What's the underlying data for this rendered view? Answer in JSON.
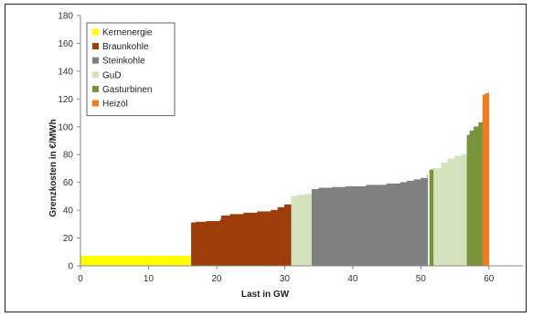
{
  "chart_data": {
    "type": "area",
    "xlabel": "Last in GW",
    "ylabel": "Grenzkosten in €/MWh",
    "xlim": [
      0,
      65
    ],
    "ylim": [
      0,
      180
    ],
    "xticks": [
      0,
      10,
      20,
      30,
      40,
      50,
      60
    ],
    "yticks": [
      0,
      20,
      40,
      60,
      80,
      100,
      120,
      140,
      160,
      180
    ],
    "grid": false,
    "legend_position": "top-left",
    "series": [
      {
        "name": "Kernenergie",
        "color": "#ffff00",
        "points": [
          [
            0,
            7
          ],
          [
            16.3,
            7
          ]
        ]
      },
      {
        "name": "Braunkohle",
        "color": "#9c3d0a",
        "points": [
          [
            16.3,
            31
          ],
          [
            17,
            31.5
          ],
          [
            18.5,
            32
          ],
          [
            20.5,
            33
          ],
          [
            20.7,
            36
          ],
          [
            22,
            37
          ],
          [
            24,
            38
          ],
          [
            26,
            39
          ],
          [
            28,
            40
          ],
          [
            29,
            42
          ],
          [
            30,
            44
          ],
          [
            31,
            46
          ]
        ]
      },
      {
        "name": "GuD",
        "color": "#d3e3bc",
        "points": [
          [
            31,
            50
          ],
          [
            32,
            51
          ],
          [
            33,
            51.5
          ],
          [
            34,
            52
          ]
        ]
      },
      {
        "name": "Steinkohle",
        "color": "#808080",
        "points": [
          [
            34,
            55
          ],
          [
            35,
            56
          ],
          [
            37,
            56.5
          ],
          [
            39,
            57
          ],
          [
            42,
            58
          ],
          [
            45,
            59
          ],
          [
            47,
            60
          ],
          [
            48,
            61
          ],
          [
            49,
            62
          ],
          [
            50,
            63
          ],
          [
            51,
            66
          ]
        ]
      },
      {
        "name": "Gasturbinen",
        "color": "#77933c",
        "points": [
          [
            51.3,
            69
          ],
          [
            51.9,
            70
          ]
        ]
      },
      {
        "name": "GuD",
        "color": "#d3e3bc",
        "points": [
          [
            51.9,
            70
          ],
          [
            53,
            74
          ],
          [
            54,
            77
          ],
          [
            55,
            79
          ],
          [
            56,
            80
          ],
          [
            56.8,
            81
          ]
        ]
      },
      {
        "name": "Gasturbinen",
        "color": "#77933c",
        "points": [
          [
            56.8,
            94
          ],
          [
            57.2,
            97
          ],
          [
            57.8,
            100
          ],
          [
            58.5,
            103
          ],
          [
            59.1,
            106
          ]
        ]
      },
      {
        "name": "Heizöl",
        "color": "#f07c1f",
        "points": [
          [
            59.1,
            123
          ],
          [
            59.5,
            124
          ],
          [
            60,
            125
          ]
        ]
      }
    ],
    "legend": [
      {
        "name": "Kernenergie",
        "color": "#ffff00"
      },
      {
        "name": "Braunkohle",
        "color": "#9c3d0a"
      },
      {
        "name": "Steinkohle",
        "color": "#808080"
      },
      {
        "name": "GuD",
        "color": "#d3e3bc"
      },
      {
        "name": "Gasturbinen",
        "color": "#77933c"
      },
      {
        "name": "Heizöl",
        "color": "#f07c1f"
      }
    ]
  }
}
